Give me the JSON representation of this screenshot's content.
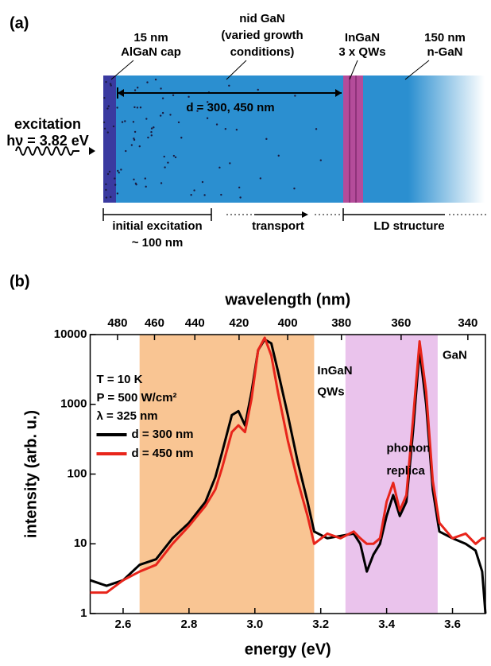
{
  "panel_a": {
    "label": "(a)",
    "algan_cap": [
      "15 nm",
      "AlGaN cap"
    ],
    "nid_gan": [
      "nid GaN",
      "(varied growth",
      "conditions)"
    ],
    "ingan": [
      "InGaN",
      "3 x QWs"
    ],
    "n_gan": [
      "150 nm",
      "n-GaN"
    ],
    "excitation": [
      "excitation",
      "hν = 3.82 eV"
    ],
    "thickness": "d = 300, 450 nm",
    "initial_excitation": [
      "initial excitation",
      "~ 100 nm"
    ],
    "transport": "transport",
    "ld_structure": "LD structure"
  },
  "chart_data": {
    "type": "line",
    "panel_label": "(b)",
    "xlabel": "energy (eV)",
    "ylabel": "intensity (arb. u.)",
    "x2label": "wavelength (nm)",
    "xlim": [
      2.5,
      3.7
    ],
    "xticks": [
      2.6,
      2.8,
      {
        "value": 3,
        "label": "3.0"
      },
      3.2,
      3.4,
      3.6
    ],
    "x2ticks": [
      480,
      460,
      440,
      420,
      400,
      380,
      360,
      340
    ],
    "ylim": [
      1,
      10000
    ],
    "yticks": [
      1,
      10,
      100,
      1000,
      10000
    ],
    "log_y": true,
    "legend": "upper left",
    "bands": [
      {
        "xlim": [
          2.65,
          3.18
        ],
        "color": "#f9c593"
      },
      {
        "xlim": [
          3.275,
          3.555
        ],
        "color": "#eac3ec"
      }
    ],
    "annotations": [
      {
        "text": "InGaN",
        "x": 3.18,
        "y": 3000
      },
      {
        "text": "QWs",
        "x": 3.18,
        "y": 1500
      },
      {
        "text": "GaN",
        "x": 3.56,
        "y": 5000
      },
      {
        "text": "phonon",
        "x": 3.39,
        "y": 230
      },
      {
        "text": "replica",
        "x": 3.39,
        "y": 110
      }
    ],
    "conditions": [
      "T = 10 K",
      "P = 500 W/cm²",
      "λ = 325 nm"
    ],
    "x": [
      2.5,
      2.55,
      2.6,
      2.65,
      2.7,
      2.75,
      2.8,
      2.85,
      2.88,
      2.9,
      2.93,
      2.95,
      2.97,
      2.99,
      3.01,
      3.03,
      3.05,
      3.07,
      3.1,
      3.13,
      3.16,
      3.18,
      3.22,
      3.26,
      3.3,
      3.32,
      3.34,
      3.36,
      3.38,
      3.4,
      3.42,
      3.44,
      3.46,
      3.48,
      3.5,
      3.52,
      3.54,
      3.56,
      3.6,
      3.64,
      3.67,
      3.69,
      3.7
    ],
    "series": [
      {
        "name": "d = 300 nm",
        "color": "#000000",
        "values": [
          3,
          2.5,
          3,
          5,
          6,
          12,
          20,
          40,
          90,
          200,
          700,
          800,
          500,
          1500,
          6000,
          8500,
          7500,
          3000,
          700,
          150,
          40,
          15,
          12,
          13,
          14,
          10,
          4,
          7,
          10,
          25,
          50,
          25,
          40,
          400,
          6000,
          1000,
          60,
          15,
          12,
          10,
          8,
          4,
          1
        ]
      },
      {
        "name": "d = 450 nm",
        "color": "#e8251b",
        "values": [
          2,
          2,
          3,
          4,
          5,
          10,
          18,
          35,
          60,
          120,
          400,
          500,
          400,
          1200,
          6000,
          9000,
          5000,
          1500,
          300,
          80,
          25,
          10,
          14,
          12,
          15,
          12,
          10,
          10,
          12,
          40,
          75,
          30,
          50,
          600,
          8000,
          1500,
          80,
          20,
          12,
          14,
          10,
          12,
          12
        ]
      }
    ]
  }
}
